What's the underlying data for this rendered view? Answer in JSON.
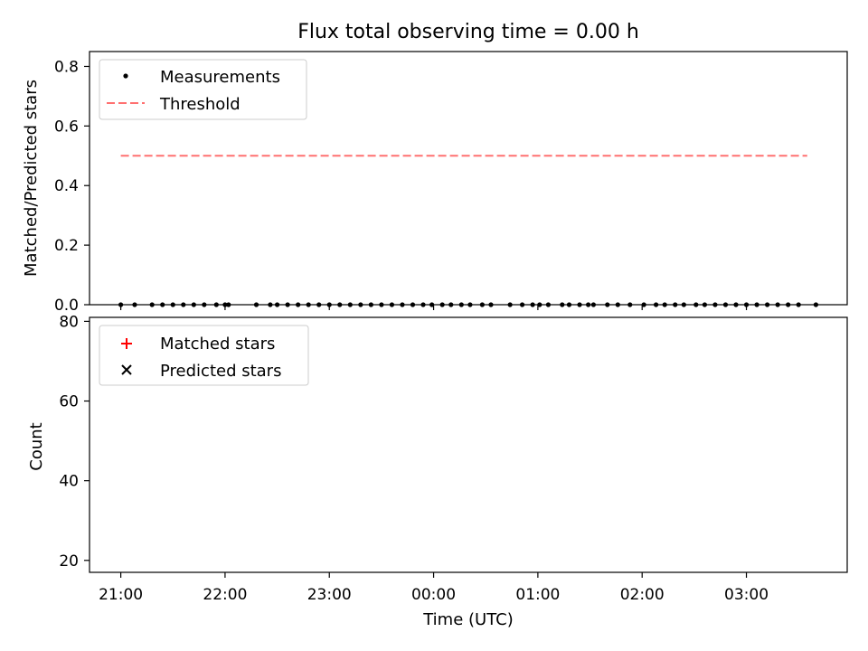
{
  "chart_data": [
    {
      "type": "scatter",
      "title": "Flux total observing time = 0.00 h",
      "ylabel": "Matched/Predicted stars",
      "xlim": [
        "20:42",
        "03:58"
      ],
      "ylim": [
        0,
        0.85
      ],
      "yticks": [
        "0.0",
        "0.2",
        "0.4",
        "0.6",
        "0.8"
      ],
      "legend_position": "top-left",
      "legend": [
        "Measurements",
        "Threshold"
      ],
      "threshold": {
        "name": "Threshold",
        "value": 0.5,
        "x_range": [
          "21:00",
          "03:35"
        ],
        "color": "#ff7070"
      },
      "series": [
        {
          "name": "Measurements",
          "color": "#000000",
          "x": [
            "21:00",
            "21:08",
            "21:18",
            "21:24",
            "21:30",
            "21:36",
            "21:42",
            "21:48",
            "21:55",
            "22:00",
            "22:02",
            "22:18",
            "22:26",
            "22:30",
            "22:36",
            "22:42",
            "22:48",
            "22:54",
            "23:00",
            "23:06",
            "23:12",
            "23:18",
            "23:24",
            "23:30",
            "23:36",
            "23:42",
            "23:48",
            "23:54",
            "23:59",
            "00:05",
            "00:10",
            "00:16",
            "00:21",
            "00:28",
            "00:33",
            "00:44",
            "00:51",
            "00:57",
            "01:01",
            "01:06",
            "01:14",
            "01:18",
            "01:24",
            "01:29",
            "01:32",
            "01:40",
            "01:46",
            "01:53",
            "02:01",
            "02:08",
            "02:13",
            "02:19",
            "02:24",
            "02:31",
            "02:36",
            "02:42",
            "02:48",
            "02:54",
            "03:00",
            "03:06",
            "03:12",
            "03:18",
            "03:24",
            "03:30",
            "03:40"
          ],
          "y": [
            0,
            0,
            0,
            0,
            0,
            0,
            0,
            0,
            0,
            0,
            0,
            0,
            0,
            0,
            0,
            0,
            0,
            0,
            0,
            0,
            0,
            0,
            0,
            0,
            0,
            0,
            0,
            0,
            0,
            0,
            0,
            0,
            0,
            0,
            0,
            0,
            0,
            0,
            0,
            0,
            0,
            0,
            0,
            0,
            0,
            0,
            0,
            0,
            0,
            0,
            0,
            0,
            0,
            0,
            0,
            0,
            0,
            0,
            0,
            0,
            0,
            0,
            0,
            0,
            0
          ]
        }
      ]
    },
    {
      "type": "scatter",
      "ylabel": "Count",
      "xlabel": "Time (UTC)",
      "xlim": [
        "20:42",
        "03:58"
      ],
      "ylim": [
        17,
        81
      ],
      "yticks": [
        "20",
        "40",
        "60",
        "80"
      ],
      "xticks": [
        "21:00",
        "22:00",
        "23:00",
        "00:00",
        "01:00",
        "02:00",
        "03:00"
      ],
      "legend_position": "top-left",
      "legend": [
        "Matched stars",
        "Predicted stars"
      ],
      "series": [
        {
          "name": "Matched stars",
          "color": "#ff0000",
          "marker": "+",
          "points": []
        },
        {
          "name": "Predicted stars",
          "color": "#000000",
          "marker": "x",
          "points": []
        }
      ]
    }
  ]
}
